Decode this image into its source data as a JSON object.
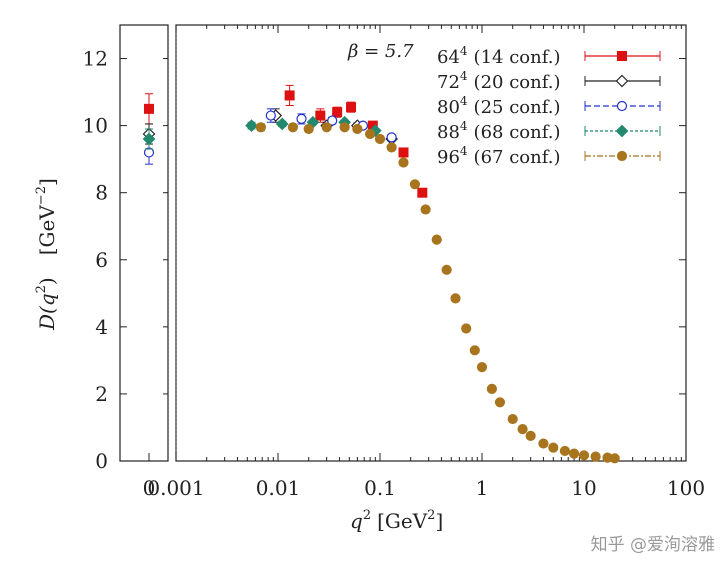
{
  "chart_data": {
    "type": "scatter",
    "title": "",
    "xlabel_base": "q",
    "xlabel_exp": "2",
    "xlabel_unit_pre": "[GeV",
    "xlabel_unit_exp": "2",
    "xlabel_unit_post": "]",
    "ylabel_main": "D(q",
    "ylabel_exp": "2",
    "ylabel_main_post": ")",
    "ylabel_unit_pre": "[GeV",
    "ylabel_unit_exp": "−2",
    "ylabel_unit_post": "]",
    "xscale": "log",
    "xlim": [
      0.001,
      100
    ],
    "ylim": [
      0,
      13
    ],
    "x_ticks": [
      {
        "value": 0.001,
        "label": "0.001"
      },
      {
        "value": 0.01,
        "label": "0.01"
      },
      {
        "value": 0.1,
        "label": "0.1"
      },
      {
        "value": 1,
        "label": "1"
      },
      {
        "value": 10,
        "label": "10"
      },
      {
        "value": 100,
        "label": "100"
      }
    ],
    "zero_panel_tick": "0",
    "y_ticks": [
      {
        "value": 0,
        "label": "0"
      },
      {
        "value": 2,
        "label": "2"
      },
      {
        "value": 4,
        "label": "4"
      },
      {
        "value": 6,
        "label": "6"
      },
      {
        "value": 8,
        "label": "8"
      },
      {
        "value": 10,
        "label": "10"
      },
      {
        "value": 12,
        "label": "12"
      }
    ],
    "legend_placement": "top-right",
    "legend_header": "β = 5.7",
    "series": [
      {
        "size_base": "64",
        "size_exp": "4",
        "conf": "(14 conf.)",
        "color": "#dd1111",
        "marker": "square",
        "dash": "none",
        "zero_point": {
          "y": 10.5,
          "err": 0.45
        },
        "points": [
          [
            0.013,
            10.9,
            0.3
          ],
          [
            0.026,
            10.3,
            0.2
          ],
          [
            0.038,
            10.4,
            0.15
          ],
          [
            0.052,
            10.55,
            0.15
          ],
          [
            0.085,
            10.0,
            0.1
          ],
          [
            0.17,
            9.2,
            0.1
          ],
          [
            0.26,
            8.0,
            0.1
          ]
        ]
      },
      {
        "size_base": "72",
        "size_exp": "4",
        "conf": "(20 conf.)",
        "color": "#222222",
        "marker": "diamond-open",
        "dash": "none",
        "zero_point": {
          "y": 9.75,
          "err": 0.3
        },
        "points": [
          [
            0.0095,
            10.3,
            0.2
          ],
          [
            0.03,
            10.0,
            0.1
          ],
          [
            0.06,
            10.0,
            0.08
          ],
          [
            0.13,
            9.6,
            0.06
          ]
        ]
      },
      {
        "size_base": "80",
        "size_exp": "4",
        "conf": "(25 conf.)",
        "color": "#2233cc",
        "marker": "circle-open",
        "dash": "6 3",
        "zero_point": {
          "y": 9.2,
          "err": 0.35
        },
        "points": [
          [
            0.0085,
            10.3,
            0.2
          ],
          [
            0.017,
            10.2,
            0.15
          ],
          [
            0.034,
            10.15,
            0.1
          ],
          [
            0.068,
            10.0,
            0.08
          ],
          [
            0.13,
            9.65,
            0.06
          ]
        ]
      },
      {
        "size_base": "88",
        "size_exp": "4",
        "conf": "(68 conf.)",
        "color": "#22886e",
        "marker": "diamond",
        "dash": "3 2",
        "zero_point": {
          "y": 9.6,
          "err": 0.3
        },
        "points": [
          [
            0.0055,
            10.0,
            0.1
          ],
          [
            0.011,
            10.05,
            0.08
          ],
          [
            0.022,
            10.1,
            0.06
          ],
          [
            0.045,
            10.1,
            0.06
          ],
          [
            0.09,
            9.85,
            0.05
          ]
        ]
      },
      {
        "size_base": "96",
        "size_exp": "4",
        "conf": "(67 conf.)",
        "color": "#a8741e",
        "marker": "circle",
        "dash": "6 2 2 2",
        "zero_point": null,
        "points": [
          [
            0.0068,
            9.95,
            0.1
          ],
          [
            0.014,
            9.95,
            0.08
          ],
          [
            0.02,
            9.9,
            0.06
          ],
          [
            0.03,
            9.95,
            0.05
          ],
          [
            0.045,
            9.95,
            0.05
          ],
          [
            0.06,
            9.9,
            0.05
          ],
          [
            0.08,
            9.75,
            0.05
          ],
          [
            0.1,
            9.6,
            0.05
          ],
          [
            0.13,
            9.35,
            0.05
          ],
          [
            0.17,
            8.9,
            0.05
          ],
          [
            0.22,
            8.25,
            0.05
          ],
          [
            0.28,
            7.5,
            0.05
          ],
          [
            0.36,
            6.6,
            0.05
          ],
          [
            0.45,
            5.7,
            0.05
          ],
          [
            0.55,
            4.85,
            0.05
          ],
          [
            0.7,
            3.95,
            0.05
          ],
          [
            0.85,
            3.3,
            0.05
          ],
          [
            1.0,
            2.8,
            0.05
          ],
          [
            1.25,
            2.15,
            0.05
          ],
          [
            1.5,
            1.75,
            0.05
          ],
          [
            2.0,
            1.25,
            0.04
          ],
          [
            2.5,
            0.95,
            0.04
          ],
          [
            3.0,
            0.75,
            0.03
          ],
          [
            4.0,
            0.52,
            0.03
          ],
          [
            5.0,
            0.4,
            0.03
          ],
          [
            6.5,
            0.3,
            0.02
          ],
          [
            8.0,
            0.22,
            0.02
          ],
          [
            10.0,
            0.17,
            0.02
          ],
          [
            13.0,
            0.13,
            0.02
          ],
          [
            17.0,
            0.1,
            0.02
          ],
          [
            20.0,
            0.08,
            0.02
          ]
        ]
      }
    ]
  },
  "watermark": "知乎 @爱洵溶雅"
}
